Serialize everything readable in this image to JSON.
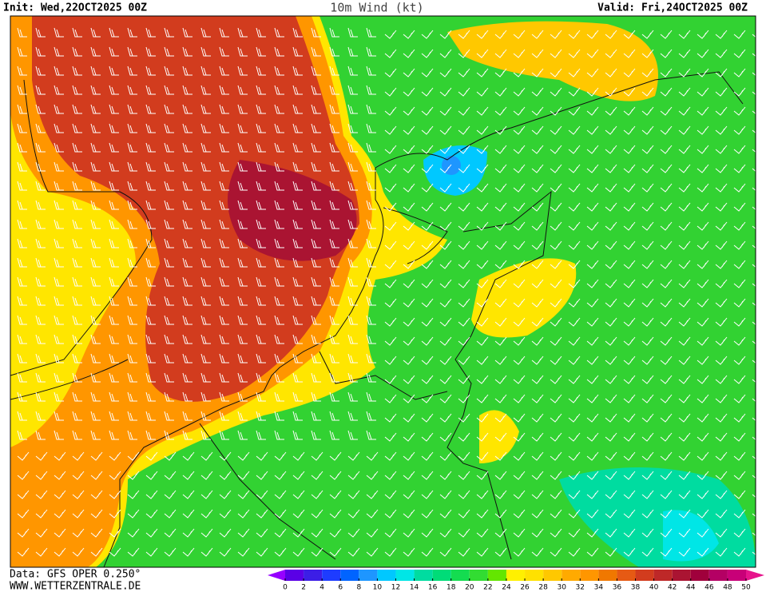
{
  "header": {
    "init": "Init: Wed,22OCT2025 00Z",
    "title": "10m Wind (kt)",
    "valid": "Valid: Fri,24OCT2025 00Z"
  },
  "footer": {
    "data_source": "Data: GFS OPER 0.250°",
    "website": "WWW.WETTERZENTRALE.DE"
  },
  "colorbar": {
    "labels": [
      0,
      2,
      4,
      6,
      8,
      10,
      12,
      14,
      16,
      18,
      20,
      22,
      24,
      26,
      28,
      30,
      32,
      34,
      36,
      38,
      40,
      42,
      44,
      46,
      48,
      50
    ],
    "colors": [
      "#5a00e6",
      "#3c1ee6",
      "#1e3cff",
      "#0064ff",
      "#1e96ff",
      "#00c8ff",
      "#00e6e6",
      "#00dca0",
      "#00dc78",
      "#14dc50",
      "#32dc32",
      "#64e600",
      "#fff000",
      "#ffe100",
      "#ffc800",
      "#ffaa00",
      "#ff9600",
      "#f07800",
      "#e65a14",
      "#d23c1e",
      "#be2828",
      "#aa1432",
      "#a0003c",
      "#b40064",
      "#c80078"
    ],
    "under_color": "#9600ff",
    "over_color": "#e6148c"
  }
}
